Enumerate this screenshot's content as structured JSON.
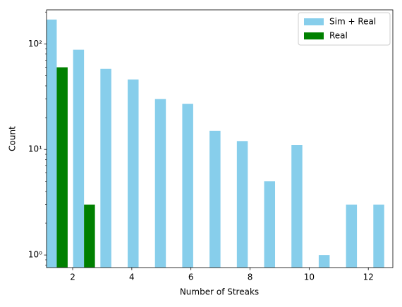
{
  "chart_data": {
    "type": "histogram",
    "xlabel": "Number of Streaks",
    "ylabel": "Count",
    "bins": [
      1,
      1.923,
      2.846,
      3.769,
      4.692,
      5.615,
      6.538,
      7.462,
      8.385,
      9.308,
      10.231,
      11.154,
      12.077,
      13
    ],
    "series": [
      {
        "name": "Sim + Real",
        "color": "#87ceeb",
        "values": [
          170,
          88,
          58,
          46,
          30,
          27,
          15,
          12,
          5,
          11,
          1,
          3,
          3
        ]
      },
      {
        "name": "Real",
        "color": "#008000",
        "values": [
          60,
          3,
          0,
          0,
          0,
          0,
          0,
          0,
          0,
          0,
          0,
          0,
          0
        ]
      }
    ],
    "xlim": [
      1.117,
      12.83
    ],
    "xticks": [
      2,
      4,
      6,
      8,
      10,
      12
    ],
    "ylim": [
      0.76,
      210
    ],
    "log_y": true,
    "yticks": [
      {
        "value": 1,
        "label": "10⁰"
      },
      {
        "value": 10,
        "label": "10¹"
      },
      {
        "value": 100,
        "label": "10²"
      }
    ],
    "legend": "upper right"
  }
}
